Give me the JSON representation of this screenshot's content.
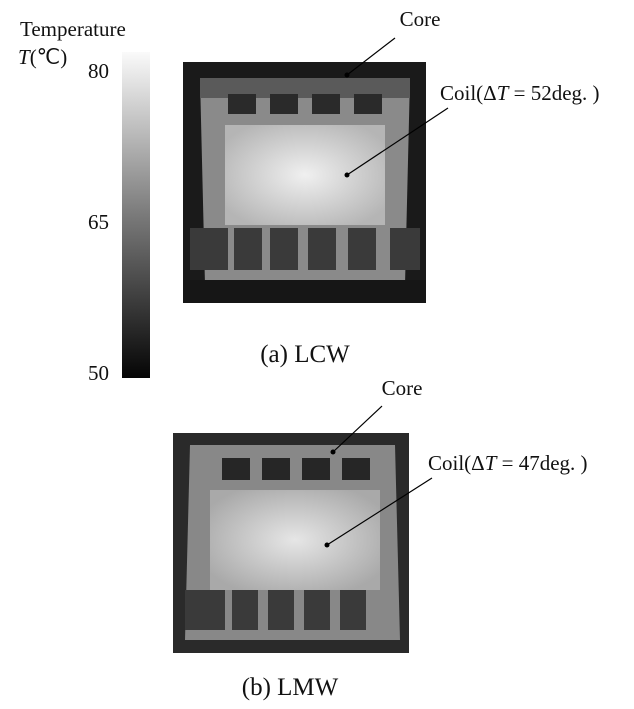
{
  "colorbar": {
    "title": "Temperature",
    "unit_var": "T",
    "unit": "(℃)",
    "ticks": [
      80,
      65,
      50
    ]
  },
  "panels": [
    {
      "core_label": "Core",
      "coil_label": {
        "prefix": "Coil(Δ",
        "var": "T",
        "suffix": " = 52deg. )"
      },
      "caption": "(a) LCW"
    },
    {
      "core_label": "Core",
      "coil_label": {
        "prefix": "Coil(Δ",
        "var": "T",
        "suffix": " = 47deg. )"
      },
      "caption": "(b) LMW"
    }
  ]
}
